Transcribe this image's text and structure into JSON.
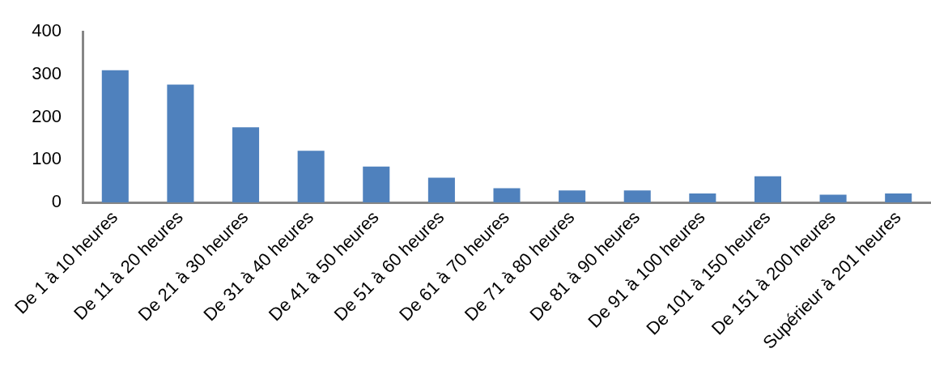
{
  "chart_data": {
    "type": "bar",
    "categories": [
      "De 1 à 10 heures",
      "De 11 à 20 heures",
      "De 21 à 30 heures",
      "De 31 à 40 heures",
      "De 41 à 50 heures",
      "De 51 à 60 heures",
      "De 61 à 70 heures",
      "De 71 à 80 heures",
      "De 81 à 90 heures",
      "De 91 à 100 heures",
      "De 101 à 150 heures",
      "De 151 à 200 heures",
      "Supérieur à 201 heures"
    ],
    "values": [
      310,
      276,
      176,
      121,
      84,
      58,
      33,
      28,
      28,
      21,
      61,
      18,
      21
    ],
    "color": "#4f81bd",
    "ylim": [
      0,
      400
    ],
    "yticks": [
      0,
      100,
      200,
      300,
      400
    ]
  }
}
